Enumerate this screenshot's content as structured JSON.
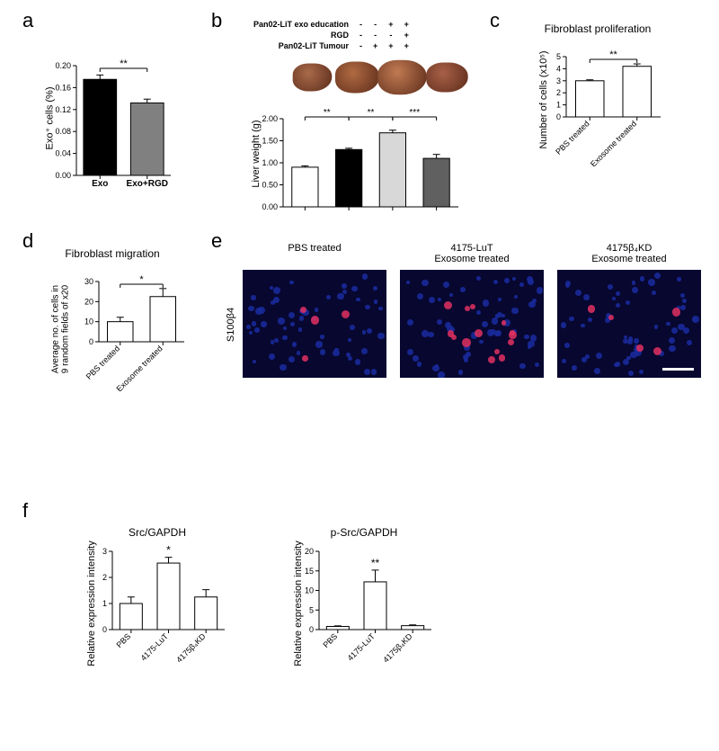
{
  "labels": {
    "a": "a",
    "b": "b",
    "c": "c",
    "d": "d",
    "e": "e",
    "f": "f"
  },
  "panelA": {
    "type": "bar",
    "categories": [
      "Exo",
      "Exo+RGD"
    ],
    "values": [
      0.175,
      0.132
    ],
    "errors": [
      0.008,
      0.007
    ],
    "bar_colors": [
      "#000000",
      "#808080"
    ],
    "ylim": [
      0,
      0.2
    ],
    "ytick_step": 0.04,
    "ylabel": "Exo⁺ cells (%)",
    "label_fontsize": 11,
    "tick_fontsize": 10,
    "sig_text": "**",
    "bar_width": 0.7,
    "background_color": "#ffffff"
  },
  "panelB": {
    "type": "bar",
    "legend_rows": [
      {
        "name": "Pan02-LiT exo education",
        "vals": [
          "-",
          "-",
          "+",
          "+"
        ]
      },
      {
        "name": "RGD",
        "vals": [
          "-",
          "-",
          "-",
          "+"
        ]
      },
      {
        "name": "Pan02-LiT Tumour",
        "vals": [
          "-",
          "+",
          "+",
          "+"
        ]
      }
    ],
    "values": [
      0.9,
      1.3,
      1.68,
      1.1
    ],
    "errors": [
      0.03,
      0.03,
      0.06,
      0.09
    ],
    "bar_colors": [
      "#ffffff",
      "#000000",
      "#d8d8d8",
      "#606060"
    ],
    "liver_colors": [
      "#a86a4a",
      "#b06a42",
      "#c07a52",
      "#a86048"
    ],
    "ylim": [
      0,
      2.0
    ],
    "ytick_step": 0.5,
    "ylabel": "Liver weight (g)",
    "sigs": [
      {
        "from": 0,
        "to": 1,
        "text": "**"
      },
      {
        "from": 2,
        "to": 3,
        "text": "***"
      },
      {
        "from": 1,
        "to": 2,
        "text": "**"
      }
    ]
  },
  "panelC": {
    "type": "bar",
    "title": "Fibroblast proliferation",
    "categories": [
      "PBS treated",
      "Exosome treated"
    ],
    "values": [
      3.0,
      4.2
    ],
    "errors": [
      0.08,
      0.2
    ],
    "bar_colors": [
      "#ffffff",
      "#ffffff"
    ],
    "ylim": [
      0,
      5
    ],
    "ytick_step": 1,
    "ylabel": "Number of cells (x10⁵)",
    "sig_text": "**"
  },
  "panelD": {
    "type": "bar",
    "title": "Fibroblast migration",
    "categories": [
      "PBS treated",
      "Exosome treated"
    ],
    "values": [
      10,
      22.5
    ],
    "errors": [
      2.2,
      4.0
    ],
    "bar_colors": [
      "#ffffff",
      "#ffffff"
    ],
    "ylim": [
      0,
      30
    ],
    "ytick_step": 10,
    "ylabel": "Average no. of cells in\n9 random fields of x20",
    "sig_text": "*"
  },
  "panelE": {
    "row_label": "S100β4",
    "columns": [
      {
        "title": "PBS treated",
        "red_count": 4
      },
      {
        "title": "4175-LuT\nExosome treated",
        "red_count": 14
      },
      {
        "title": "4175β₄KD\nExosome treated",
        "red_count": 5
      }
    ],
    "blue_color": "#1a2a9a",
    "red_color": "#e03060",
    "bg_color": "#070730",
    "scale_bar": true
  },
  "panelF": {
    "charts": [
      {
        "title": "Src/GAPDH",
        "categories": [
          "PBS",
          "4175-LuT",
          "4175β₄KD"
        ],
        "values": [
          1.0,
          2.55,
          1.25
        ],
        "errors": [
          0.25,
          0.22,
          0.28
        ],
        "ylabel": "Relative expression intensity",
        "ylim": [
          0,
          3
        ],
        "ytick_step": 1,
        "sig": {
          "idx": 1,
          "text": "*"
        }
      },
      {
        "title": "p-Src/GAPDH",
        "categories": [
          "PBS",
          "4175-LuT",
          "4175β₄KD"
        ],
        "values": [
          0.8,
          12.2,
          1.0
        ],
        "errors": [
          0.15,
          3.0,
          0.2
        ],
        "ylabel": "Relative expression intensity",
        "ylim": [
          0,
          20
        ],
        "ytick_step": 5,
        "sig": {
          "idx": 1,
          "text": "**"
        }
      }
    ],
    "bar_color": "#ffffff"
  }
}
